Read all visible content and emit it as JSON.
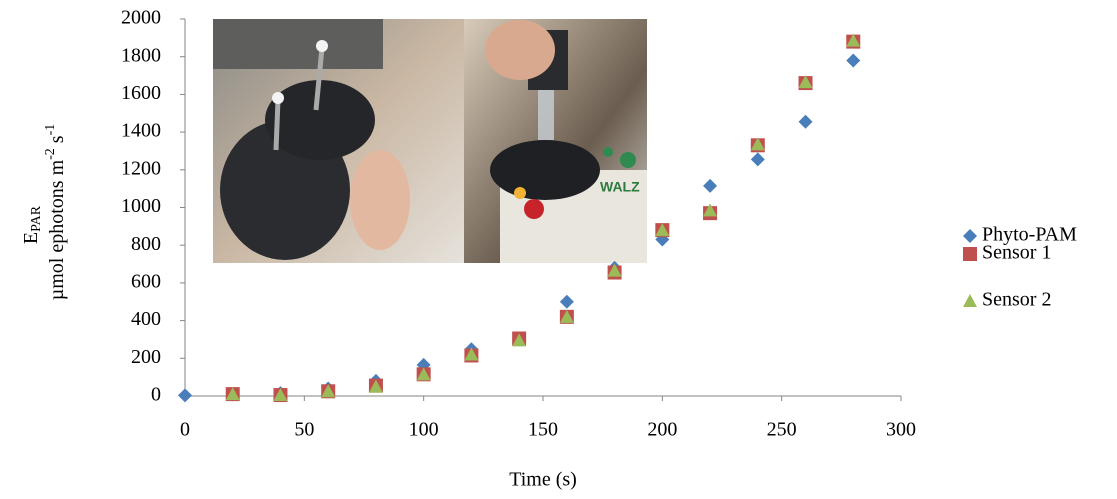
{
  "chart_data": {
    "type": "scatter",
    "xlabel": "Time (s)",
    "ylabel": {
      "symbol": "E",
      "subscript": "PAR",
      "unit": "µmol ephotons m",
      "exp1": "-2",
      "unit2": " s",
      "exp2": "-1"
    },
    "x": [
      0,
      20,
      40,
      60,
      80,
      100,
      120,
      140,
      160,
      180,
      200,
      220,
      240,
      260,
      280
    ],
    "series": [
      {
        "name": "Phyto-PAM",
        "color": "#4a7ebb",
        "marker": "diamond",
        "values": [
          3,
          8,
          15,
          40,
          80,
          165,
          248,
          300,
          500,
          680,
          830,
          1115,
          1255,
          1455,
          1780
        ]
      },
      {
        "name": "Sensor 1",
        "color": "#c0504d",
        "marker": "square",
        "values": [
          null,
          10,
          5,
          25,
          55,
          115,
          215,
          305,
          420,
          655,
          880,
          970,
          1330,
          1660,
          1880
        ]
      },
      {
        "name": "Sensor 2",
        "color": "#9bbb59",
        "marker": "triangle",
        "values": [
          null,
          10,
          5,
          25,
          50,
          115,
          220,
          295,
          420,
          665,
          880,
          985,
          1335,
          1665,
          1885
        ]
      }
    ],
    "xlim": [
      0,
      300
    ],
    "xticks": [
      0,
      50,
      100,
      150,
      200,
      250,
      300
    ],
    "ylim": [
      0,
      2000
    ],
    "yticks": [
      0,
      200,
      400,
      600,
      800,
      1000,
      1200,
      1400,
      1600,
      1800,
      2000
    ],
    "grid": false,
    "legend": "right"
  }
}
